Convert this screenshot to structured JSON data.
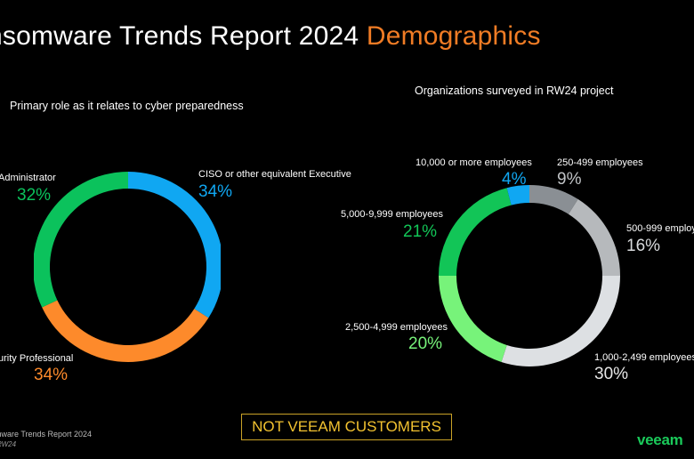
{
  "title": {
    "main": "nsomware Trends Report 2024",
    "accent": "Demographics"
  },
  "chart_data": [
    {
      "type": "pie",
      "title": "Primary role as it relates to cyber preparedness",
      "labels": [
        "CISO or other equivalent Executive",
        "urity Professional",
        "Administrator"
      ],
      "values": [
        34,
        34,
        32
      ],
      "display": [
        "34%",
        "34%",
        "32%"
      ],
      "colors": [
        "#10a7f2",
        "#fd8a2b",
        "#0bc25c"
      ]
    },
    {
      "type": "pie",
      "title": "Organizations surveyed in RW24 project",
      "labels": [
        "250-499 employees",
        "500-999 employe",
        "1,000-2,499 employees",
        "2,500-4,999 employees",
        "5,000-9,999 employees",
        "10,000 or more employees"
      ],
      "values": [
        9,
        16,
        30,
        20,
        21,
        4
      ],
      "display": [
        "9%",
        "16%",
        "30%",
        "20%",
        "21%",
        "4%"
      ],
      "colors": [
        "#8a8f94",
        "#b6b9bc",
        "#dde0e3",
        "#77f37a",
        "#12c557",
        "#10a7f2"
      ],
      "label_colors": [
        "#ffffff",
        "#ffffff",
        "#ffffff",
        "#ffffff",
        "#ffffff",
        "#ffffff"
      ],
      "pct_colors": [
        "#c0c3c6",
        "#d8dadc",
        "#e6e6e6",
        "#77f37a",
        "#12c557",
        "#10a7f2"
      ]
    }
  ],
  "badge": "NOT VEEAM CUSTOMERS",
  "footer": {
    "source": "mware Trends Report 2024",
    "code": "RW24"
  },
  "logo": "veeam"
}
